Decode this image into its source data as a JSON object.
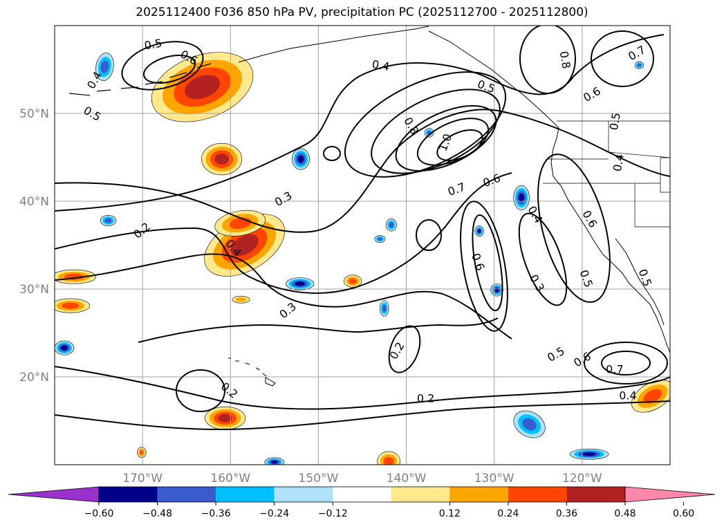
{
  "title": "2025112400 F036 850 hPa PV, precipitation PC (2025112700 - 2025112800)",
  "map": {
    "lon_range": [
      -180,
      -110
    ],
    "lat_range": [
      10,
      60
    ],
    "lat_ticks": [
      {
        "lat": 50,
        "label": "50°N"
      },
      {
        "lat": 40,
        "label": "40°N"
      },
      {
        "lat": 30,
        "label": "30°N"
      },
      {
        "lat": 20,
        "label": "20°N"
      }
    ],
    "lon_ticks": [
      {
        "lon": -170,
        "label": "170°W"
      },
      {
        "lon": -160,
        "label": "160°W"
      },
      {
        "lon": -150,
        "label": "150°W"
      },
      {
        "lon": -140,
        "label": "140°W"
      },
      {
        "lon": -130,
        "label": "130°W"
      },
      {
        "lon": -120,
        "label": "120°W"
      }
    ],
    "grid": true,
    "contour_labels": [
      {
        "text": "0.5",
        "lon": -168.8,
        "lat": 57.9,
        "rot": -10
      },
      {
        "text": "0.6",
        "lon": -164.7,
        "lat": 56.4,
        "rot": 30
      },
      {
        "text": "0.4",
        "lon": -175.5,
        "lat": 53.8,
        "rot": -60
      },
      {
        "text": "0.5",
        "lon": -175.7,
        "lat": 50.0,
        "rot": 30
      },
      {
        "text": "0.4",
        "lon": -142.9,
        "lat": 55.5,
        "rot": 10
      },
      {
        "text": "0.5",
        "lon": -130.9,
        "lat": 53.1,
        "rot": 20
      },
      {
        "text": "0.8",
        "lon": -139.4,
        "lat": 48.6,
        "rot": 60
      },
      {
        "text": "1.0",
        "lon": -135.6,
        "lat": 46.7,
        "rot": -70
      },
      {
        "text": "0.6",
        "lon": -130.3,
        "lat": 42.4,
        "rot": -20
      },
      {
        "text": "0.7",
        "lon": -134.3,
        "lat": 41.4,
        "rot": -20
      },
      {
        "text": "0.8",
        "lon": -121.9,
        "lat": 56.1,
        "rot": 80
      },
      {
        "text": "0.6",
        "lon": -118.9,
        "lat": 52.2,
        "rot": -30
      },
      {
        "text": "0.5",
        "lon": -116.3,
        "lat": 49.1,
        "rot": -80
      },
      {
        "text": "0.4",
        "lon": -115.9,
        "lat": 44.4,
        "rot": -80
      },
      {
        "text": "0.7",
        "lon": -113.8,
        "lat": 56.9,
        "rot": -30
      },
      {
        "text": "0.3",
        "lon": -154.0,
        "lat": 40.3,
        "rot": -30
      },
      {
        "text": "0.2",
        "lon": -170.1,
        "lat": 36.7,
        "rot": -40
      },
      {
        "text": "0.4",
        "lon": -159.6,
        "lat": 34.7,
        "rot": 50
      },
      {
        "text": "0.4",
        "lon": -125.3,
        "lat": 38.5,
        "rot": 60
      },
      {
        "text": "0.6",
        "lon": -119.1,
        "lat": 38.0,
        "rot": 60
      },
      {
        "text": "0.6",
        "lon": -131.8,
        "lat": 33.1,
        "rot": 70
      },
      {
        "text": "0.5",
        "lon": -119.5,
        "lat": 31.2,
        "rot": 70
      },
      {
        "text": "0.3",
        "lon": -125.1,
        "lat": 30.7,
        "rot": 60
      },
      {
        "text": "0.5",
        "lon": -112.8,
        "lat": 31.3,
        "rot": 70
      },
      {
        "text": "0.3",
        "lon": -153.5,
        "lat": 27.6,
        "rot": -40
      },
      {
        "text": "0.2",
        "lon": -141.1,
        "lat": 23.0,
        "rot": -60
      },
      {
        "text": "0.5",
        "lon": -123.0,
        "lat": 22.6,
        "rot": -30
      },
      {
        "text": "0.6",
        "lon": -120.0,
        "lat": 22.0,
        "rot": -30
      },
      {
        "text": "0.7",
        "lon": -116.3,
        "lat": 20.9,
        "rot": 0
      },
      {
        "text": "0.2",
        "lon": -160.1,
        "lat": 18.5,
        "rot": 40
      },
      {
        "text": "0.2",
        "lon": -137.8,
        "lat": 17.6,
        "rot": 0
      },
      {
        "text": "0.4",
        "lon": -114.8,
        "lat": 17.9,
        "rot": 0
      }
    ],
    "precip_blobs": [
      {
        "lon": -163.2,
        "lat": 53.0,
        "rx": 6.0,
        "ry": 3.6,
        "rot": -20,
        "level": 0.48
      },
      {
        "lon": -161.0,
        "lat": 44.8,
        "rx": 2.3,
        "ry": 1.8,
        "rot": 0,
        "level": 0.48
      },
      {
        "lon": -158.4,
        "lat": 35.0,
        "rx": 5.0,
        "ry": 2.9,
        "rot": -30,
        "level": 0.48
      },
      {
        "lon": -158.9,
        "lat": 37.5,
        "rx": 2.9,
        "ry": 1.4,
        "rot": -10,
        "level": 0.36
      },
      {
        "lon": -177.8,
        "lat": 31.4,
        "rx": 2.5,
        "ry": 0.8,
        "rot": 0,
        "level": 0.36
      },
      {
        "lon": -178.2,
        "lat": 28.1,
        "rx": 2.2,
        "ry": 0.8,
        "rot": 0,
        "level": 0.36
      },
      {
        "lon": -146.1,
        "lat": 30.9,
        "rx": 1.0,
        "ry": 0.7,
        "rot": 0,
        "level": 0.36
      },
      {
        "lon": -158.8,
        "lat": 28.8,
        "rx": 1.0,
        "ry": 0.4,
        "rot": 0,
        "level": 0.24
      },
      {
        "lon": -160.6,
        "lat": 15.3,
        "rx": 2.3,
        "ry": 1.3,
        "rot": 0,
        "level": 0.48
      },
      {
        "lon": -112.0,
        "lat": 17.8,
        "rx": 2.6,
        "ry": 1.5,
        "rot": -30,
        "level": 0.36
      },
      {
        "lon": -142.0,
        "lat": 10.4,
        "rx": 1.3,
        "ry": 1.1,
        "rot": 0,
        "level": 0.36
      },
      {
        "lon": -170.1,
        "lat": 11.4,
        "rx": 0.5,
        "ry": 0.6,
        "rot": 0,
        "level": 0.36
      },
      {
        "lon": -174.3,
        "lat": 55.3,
        "rx": 1.0,
        "ry": 1.6,
        "rot": 10,
        "level": -0.36
      },
      {
        "lon": -152.0,
        "lat": 44.8,
        "rx": 1.0,
        "ry": 1.2,
        "rot": 0,
        "level": -0.48
      },
      {
        "lon": -173.9,
        "lat": 37.8,
        "rx": 0.9,
        "ry": 0.6,
        "rot": 0,
        "level": -0.36
      },
      {
        "lon": -152.1,
        "lat": 30.6,
        "rx": 1.6,
        "ry": 0.7,
        "rot": 0,
        "level": -0.48
      },
      {
        "lon": -178.9,
        "lat": 23.3,
        "rx": 1.1,
        "ry": 0.8,
        "rot": 0,
        "level": -0.48
      },
      {
        "lon": -126.9,
        "lat": 40.4,
        "rx": 0.9,
        "ry": 1.4,
        "rot": 0,
        "level": -0.48
      },
      {
        "lon": -129.7,
        "lat": 29.9,
        "rx": 0.7,
        "ry": 0.7,
        "rot": 0,
        "level": -0.48
      },
      {
        "lon": -126.0,
        "lat": 14.6,
        "rx": 1.9,
        "ry": 1.4,
        "rot": 30,
        "level": -0.36
      },
      {
        "lon": -119.2,
        "lat": 11.2,
        "rx": 2.2,
        "ry": 0.6,
        "rot": 0,
        "level": -0.48
      },
      {
        "lon": -142.5,
        "lat": 27.8,
        "rx": 0.5,
        "ry": 0.9,
        "rot": 0,
        "level": -0.36
      },
      {
        "lon": -155.0,
        "lat": 10.3,
        "rx": 1.1,
        "ry": 0.5,
        "rot": 0,
        "level": -0.48
      },
      {
        "lon": -137.4,
        "lat": 47.8,
        "rx": 0.5,
        "ry": 0.5,
        "rot": 0,
        "level": -0.36
      },
      {
        "lon": -131.7,
        "lat": 36.6,
        "rx": 0.5,
        "ry": 0.6,
        "rot": 0,
        "level": -0.48
      },
      {
        "lon": -141.7,
        "lat": 37.3,
        "rx": 0.6,
        "ry": 0.7,
        "rot": 0,
        "level": -0.36
      },
      {
        "lon": -143.0,
        "lat": 35.7,
        "rx": 0.6,
        "ry": 0.4,
        "rot": 0,
        "level": -0.36
      },
      {
        "lon": -113.5,
        "lat": 55.5,
        "rx": 0.5,
        "ry": 0.4,
        "rot": 0,
        "level": -0.36
      }
    ]
  },
  "colorbar": {
    "colors": [
      "#9932cc",
      "#00008b",
      "#3a5bcc",
      "#00bfff",
      "#aee2fb",
      "#ffffff",
      "#ffe98c",
      "#ffa500",
      "#ff4500",
      "#b22222",
      "#ff88aa"
    ],
    "ticks": [
      "−0.60",
      "−0.48",
      "−0.36",
      "−0.24",
      "−0.12",
      "0.12",
      "0.24",
      "0.36",
      "0.48",
      "0.60"
    ],
    "levels": [
      -0.6,
      -0.48,
      -0.36,
      -0.24,
      -0.12,
      0.12,
      0.24,
      0.36,
      0.48,
      0.6
    ]
  }
}
